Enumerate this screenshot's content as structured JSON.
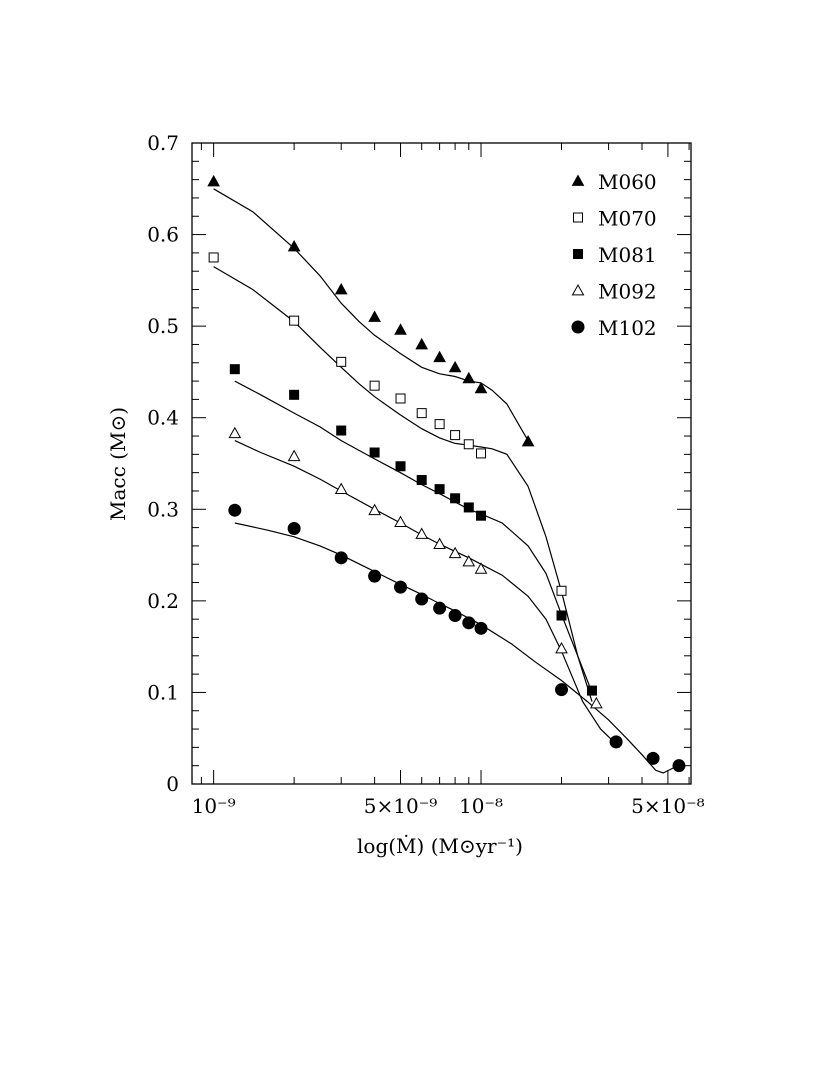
{
  "chart_data": {
    "type": "scatter",
    "xlabel": "log(Ṁ) (M⊙yr⁻¹)",
    "ylabel": "Macc (M⊙)",
    "x_scale": "log",
    "xlim": [
      8.3e-10,
      6.1e-08
    ],
    "ylim": [
      0,
      0.7
    ],
    "x_ticks": [
      {
        "value": 1e-09,
        "label": "10⁻⁹"
      },
      {
        "value": 5e-09,
        "label": "5×10⁻⁹"
      },
      {
        "value": 1e-08,
        "label": "10⁻⁸"
      },
      {
        "value": 5e-08,
        "label": "5×10⁻⁸"
      }
    ],
    "y_ticks": [
      {
        "value": 0,
        "label": "0"
      },
      {
        "value": 0.1,
        "label": "0.1"
      },
      {
        "value": 0.2,
        "label": "0.2"
      },
      {
        "value": 0.3,
        "label": "0.3"
      },
      {
        "value": 0.4,
        "label": "0.4"
      },
      {
        "value": 0.5,
        "label": "0.5"
      },
      {
        "value": 0.6,
        "label": "0.6"
      },
      {
        "value": 0.7,
        "label": "0.7"
      }
    ],
    "legend_position": "top-right",
    "series": [
      {
        "name": "M060",
        "marker": "triangle-filled",
        "x": [
          1e-09,
          2e-09,
          3e-09,
          4e-09,
          5e-09,
          6e-09,
          7e-09,
          8e-09,
          9e-09,
          1e-08,
          1.5e-08
        ],
        "y": [
          0.658,
          0.587,
          0.54,
          0.51,
          0.496,
          0.48,
          0.466,
          0.455,
          0.443,
          0.432,
          0.374
        ],
        "fit_x": [
          1e-09,
          1.4e-09,
          2e-09,
          2.5e-09,
          3e-09,
          3.5e-09,
          4e-09,
          5e-09,
          6e-09,
          7e-09,
          8e-09,
          9e-09,
          1e-08,
          1.1e-08,
          1.25e-08,
          1.4e-08,
          1.5e-08
        ],
        "fit_y": [
          0.65,
          0.625,
          0.585,
          0.555,
          0.525,
          0.505,
          0.49,
          0.47,
          0.455,
          0.448,
          0.445,
          0.44,
          0.438,
          0.43,
          0.415,
          0.39,
          0.375
        ]
      },
      {
        "name": "M070",
        "marker": "square-open",
        "x": [
          1e-09,
          2e-09,
          3e-09,
          4e-09,
          5e-09,
          6e-09,
          7e-09,
          8e-09,
          9e-09,
          1e-08,
          2e-08
        ],
        "y": [
          0.575,
          0.506,
          0.461,
          0.435,
          0.421,
          0.405,
          0.393,
          0.381,
          0.371,
          0.361,
          0.211
        ],
        "fit_x": [
          1e-09,
          1.4e-09,
          2e-09,
          2.5e-09,
          3e-09,
          3.5e-09,
          4e-09,
          5e-09,
          6e-09,
          7e-09,
          8e-09,
          9e-09,
          1e-08,
          1.1e-08,
          1.25e-08,
          1.5e-08,
          1.75e-08,
          2e-08,
          2.3e-08,
          2.6e-08
        ],
        "fit_y": [
          0.565,
          0.54,
          0.505,
          0.477,
          0.455,
          0.437,
          0.423,
          0.403,
          0.388,
          0.378,
          0.372,
          0.37,
          0.368,
          0.366,
          0.36,
          0.325,
          0.27,
          0.21,
          0.14,
          0.09
        ]
      },
      {
        "name": "M081",
        "marker": "square-filled",
        "x": [
          1.2e-09,
          2e-09,
          3e-09,
          4e-09,
          5e-09,
          6e-09,
          7e-09,
          8e-09,
          9e-09,
          1e-08,
          2e-08,
          2.6e-08
        ],
        "y": [
          0.453,
          0.425,
          0.386,
          0.362,
          0.347,
          0.332,
          0.322,
          0.312,
          0.302,
          0.293,
          0.184,
          0.102
        ],
        "fit_x": [
          1.2e-09,
          1.5e-09,
          2e-09,
          2.5e-09,
          3e-09,
          4e-09,
          5e-09,
          6e-09,
          7e-09,
          8e-09,
          9e-09,
          1e-08,
          1.2e-08,
          1.5e-08,
          1.75e-08,
          2e-08,
          2.3e-08,
          2.6e-08
        ],
        "fit_y": [
          0.44,
          0.425,
          0.405,
          0.39,
          0.375,
          0.355,
          0.34,
          0.327,
          0.317,
          0.308,
          0.3,
          0.295,
          0.285,
          0.26,
          0.23,
          0.185,
          0.14,
          0.1
        ]
      },
      {
        "name": "M092",
        "marker": "triangle-open",
        "x": [
          1.2e-09,
          2e-09,
          3e-09,
          4e-09,
          5e-09,
          6e-09,
          7e-09,
          8e-09,
          9e-09,
          1e-08,
          2e-08,
          2.7e-08
        ],
        "y": [
          0.383,
          0.358,
          0.322,
          0.299,
          0.286,
          0.273,
          0.262,
          0.252,
          0.243,
          0.235,
          0.148,
          0.088
        ],
        "fit_x": [
          1.2e-09,
          1.5e-09,
          2e-09,
          2.5e-09,
          3e-09,
          4e-09,
          5e-09,
          6e-09,
          7e-09,
          8e-09,
          9e-09,
          1e-08,
          1.2e-08,
          1.5e-08,
          1.75e-08,
          2e-08,
          2.4e-08,
          2.8e-08,
          3.3e-08
        ],
        "fit_y": [
          0.375,
          0.362,
          0.347,
          0.333,
          0.32,
          0.3,
          0.285,
          0.272,
          0.262,
          0.254,
          0.247,
          0.24,
          0.228,
          0.205,
          0.18,
          0.145,
          0.09,
          0.06,
          0.04
        ]
      },
      {
        "name": "M102",
        "marker": "circle-filled",
        "x": [
          1.2e-09,
          2e-09,
          3e-09,
          4e-09,
          5e-09,
          6e-09,
          7e-09,
          8e-09,
          9e-09,
          1e-08,
          2e-08,
          3.2e-08,
          4.4e-08,
          5.5e-08
        ],
        "y": [
          0.299,
          0.279,
          0.247,
          0.227,
          0.215,
          0.202,
          0.192,
          0.184,
          0.176,
          0.17,
          0.103,
          0.046,
          0.028,
          0.02
        ],
        "fit_x": [
          1.2e-09,
          1.6e-09,
          2e-09,
          2.5e-09,
          3e-09,
          4e-09,
          5e-09,
          6e-09,
          7e-09,
          8e-09,
          9e-09,
          1e-08,
          1.3e-08,
          1.6e-08,
          2e-08,
          2.5e-08,
          3e-08,
          3.5e-08,
          4e-08,
          4.5e-08,
          4.8e-08,
          5.2e-08,
          5.6e-08
        ],
        "fit_y": [
          0.285,
          0.277,
          0.27,
          0.26,
          0.25,
          0.232,
          0.218,
          0.207,
          0.197,
          0.189,
          0.181,
          0.174,
          0.153,
          0.133,
          0.113,
          0.09,
          0.07,
          0.05,
          0.032,
          0.015,
          0.012,
          0.017,
          0.022
        ]
      }
    ]
  }
}
